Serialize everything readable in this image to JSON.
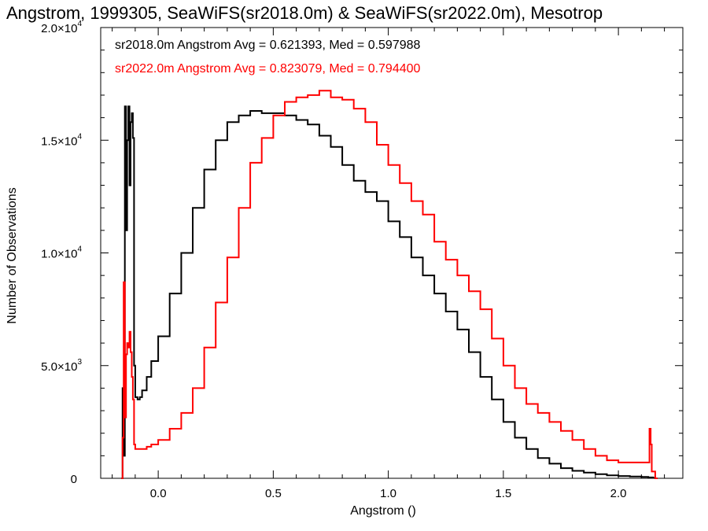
{
  "colors": {
    "background": "#ffffff",
    "axes": "#000000",
    "series_2018": "#000000",
    "series_2022": "#ff0000"
  },
  "chart_data": {
    "type": "line",
    "step": true,
    "title": "Angstrom, 1999305, SeaWiFS(sr2018.0m) & SeaWiFS(sr2022.0m), Mesotrop",
    "xlabel": "Angstrom ()",
    "ylabel": "Number of Observations",
    "xlim": [
      -0.25,
      2.28
    ],
    "ylim": [
      0,
      20000
    ],
    "grid": false,
    "x_ticks": [
      {
        "value": 0.0,
        "label": "0.0"
      },
      {
        "value": 0.5,
        "label": "0.5"
      },
      {
        "value": 1.0,
        "label": "1.0"
      },
      {
        "value": 1.5,
        "label": "1.5"
      },
      {
        "value": 2.0,
        "label": "2.0"
      }
    ],
    "y_ticks": [
      {
        "value": 0,
        "mant": "0",
        "exp": ""
      },
      {
        "value": 5000,
        "mant": "5.0×10",
        "exp": "3"
      },
      {
        "value": 10000,
        "mant": "1.0×10",
        "exp": "4"
      },
      {
        "value": 15000,
        "mant": "1.5×10",
        "exp": "4"
      },
      {
        "value": 20000,
        "mant": "2.0×10",
        "exp": "4"
      }
    ],
    "stats": [
      {
        "text": "sr2018.0m Angstrom Avg = 0.621393, Med = 0.597988",
        "color": "#000000"
      },
      {
        "text": "sr2022.0m Angstrom Avg = 0.823079, Med = 0.794400",
        "color": "#ff0000"
      }
    ],
    "series": [
      {
        "color": "#000000",
        "x": [
          -0.16,
          -0.155,
          -0.15,
          -0.145,
          -0.14,
          -0.135,
          -0.13,
          -0.125,
          -0.12,
          -0.115,
          -0.11,
          -0.105,
          -0.1,
          -0.09,
          -0.08,
          -0.07,
          -0.05,
          -0.03,
          0.0,
          0.05,
          0.1,
          0.15,
          0.2,
          0.25,
          0.3,
          0.35,
          0.4,
          0.45,
          0.5,
          0.55,
          0.6,
          0.65,
          0.7,
          0.75,
          0.8,
          0.85,
          0.9,
          0.95,
          1.0,
          1.05,
          1.1,
          1.15,
          1.2,
          1.25,
          1.3,
          1.35,
          1.4,
          1.45,
          1.5,
          1.55,
          1.6,
          1.65,
          1.7,
          1.75,
          1.8,
          1.85,
          1.9,
          1.95,
          2.0,
          2.05,
          2.1,
          2.13,
          2.15,
          2.16
        ],
        "values": [
          0,
          4000,
          1000,
          16500,
          11000,
          15000,
          16500,
          13000,
          15800,
          16200,
          15100,
          5000,
          3600,
          3500,
          3600,
          3900,
          4500,
          5200,
          6300,
          8200,
          10000,
          12000,
          13700,
          15000,
          15800,
          16100,
          16300,
          16200,
          16200,
          16100,
          15900,
          15700,
          15200,
          14700,
          13900,
          13200,
          12700,
          12300,
          11400,
          10700,
          9800,
          9000,
          8200,
          7400,
          6600,
          5600,
          4500,
          3500,
          2500,
          1800,
          1300,
          900,
          650,
          450,
          330,
          250,
          180,
          130,
          100,
          80,
          60,
          40,
          20,
          0
        ]
      },
      {
        "color": "#ff0000",
        "x": [
          -0.16,
          -0.155,
          -0.15,
          -0.145,
          -0.14,
          -0.135,
          -0.13,
          -0.125,
          -0.12,
          -0.115,
          -0.11,
          -0.105,
          -0.1,
          -0.09,
          -0.08,
          -0.07,
          -0.05,
          -0.03,
          0.0,
          0.05,
          0.1,
          0.15,
          0.2,
          0.25,
          0.3,
          0.35,
          0.4,
          0.45,
          0.5,
          0.55,
          0.6,
          0.65,
          0.7,
          0.75,
          0.8,
          0.85,
          0.9,
          0.95,
          1.0,
          1.05,
          1.1,
          1.15,
          1.2,
          1.25,
          1.3,
          1.35,
          1.4,
          1.45,
          1.5,
          1.55,
          1.6,
          1.65,
          1.7,
          1.75,
          1.8,
          1.85,
          1.9,
          1.95,
          2.0,
          2.05,
          2.1,
          2.13,
          2.135,
          2.14,
          2.145,
          2.16
        ],
        "values": [
          0,
          1800,
          8700,
          2700,
          5500,
          6000,
          5800,
          6500,
          5600,
          4500,
          3500,
          1500,
          1300,
          1300,
          1300,
          1300,
          1400,
          1500,
          1700,
          2200,
          2900,
          4000,
          5800,
          7800,
          9800,
          12000,
          14000,
          15100,
          16100,
          16700,
          16900,
          17000,
          17200,
          16900,
          16800,
          16400,
          15800,
          14800,
          13900,
          13100,
          12300,
          11700,
          10500,
          9700,
          9000,
          8300,
          7500,
          6200,
          5000,
          4000,
          3300,
          2900,
          2500,
          2100,
          1700,
          1300,
          1000,
          800,
          700,
          700,
          700,
          700,
          2200,
          1500,
          300,
          0
        ]
      }
    ]
  }
}
